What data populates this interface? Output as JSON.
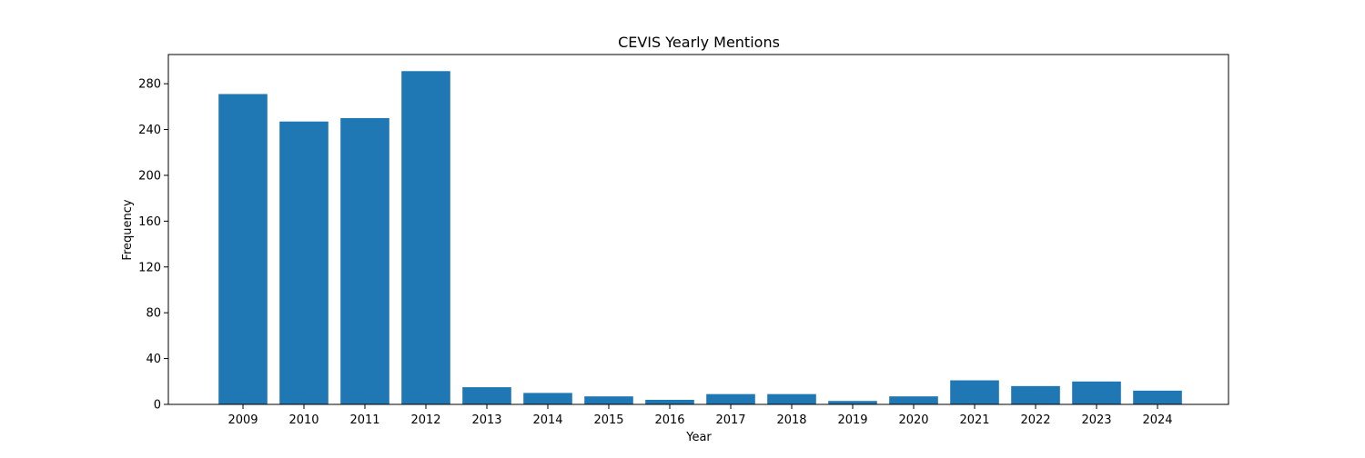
{
  "chart_data": {
    "type": "bar",
    "title": "CEVIS Yearly Mentions",
    "xlabel": "Year",
    "ylabel": "Frequency",
    "categories": [
      "2009",
      "2010",
      "2011",
      "2012",
      "2013",
      "2014",
      "2015",
      "2016",
      "2017",
      "2018",
      "2019",
      "2020",
      "2021",
      "2022",
      "2023",
      "2024"
    ],
    "values": [
      271,
      247,
      250,
      291,
      15,
      10,
      7,
      4,
      9,
      9,
      3,
      7,
      21,
      16,
      20,
      12
    ],
    "ylim": [
      0,
      305.5
    ],
    "yticks": [
      0,
      40,
      80,
      120,
      160,
      200,
      240,
      280
    ],
    "bar_color": "#1f77b4",
    "grid": false,
    "legend": "none"
  }
}
